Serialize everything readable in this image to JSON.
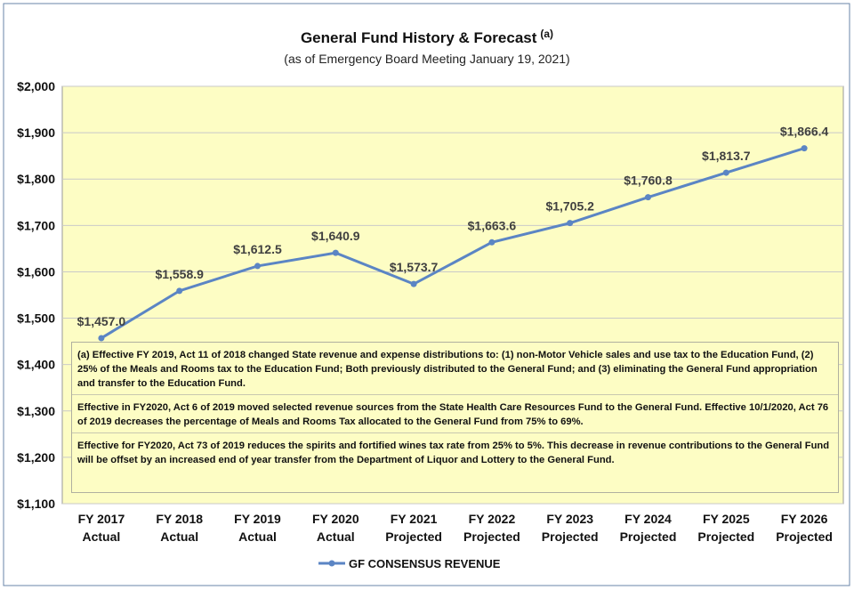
{
  "chart_data": {
    "type": "line",
    "title": "General Fund History & Forecast",
    "title_superscript": "(a)",
    "subtitle": "(as of Emergency Board Meeting January 19, 2021)",
    "categories": [
      "FY 2017\nActual",
      "FY 2018\nActual",
      "FY 2019\nActual",
      "FY 2020\nActual",
      "FY 2021\nProjected",
      "FY 2022\nProjected",
      "FY 2023\nProjected",
      "FY 2024\nProjected",
      "FY 2025\nProjected",
      "FY 2026\nProjected"
    ],
    "series": [
      {
        "name": "GF CONSENSUS REVENUE",
        "color": "#5b85c4",
        "values": [
          1457.0,
          1558.9,
          1612.5,
          1640.9,
          1573.7,
          1663.6,
          1705.2,
          1760.8,
          1813.7,
          1866.4
        ],
        "value_labels": [
          "$1,457.0",
          "$1,558.9",
          "$1,612.5",
          "$1,640.9",
          "$1,573.7",
          "$1,663.6",
          "$1,705.2",
          "$1,760.8",
          "$1,813.7",
          "$1,866.4"
        ]
      }
    ],
    "ylim": [
      1100,
      2000
    ],
    "yticks": [
      {
        "value": 1100,
        "label": "$1,100"
      },
      {
        "value": 1200,
        "label": "$1,200"
      },
      {
        "value": 1300,
        "label": "$1,300"
      },
      {
        "value": 1400,
        "label": "$1,400"
      },
      {
        "value": 1500,
        "label": "$1,500"
      },
      {
        "value": 1600,
        "label": "$1,600"
      },
      {
        "value": 1700,
        "label": "$1,700"
      },
      {
        "value": 1800,
        "label": "$1,800"
      },
      {
        "value": 1900,
        "label": "$1,900"
      },
      {
        "value": 2000,
        "label": "$2,000"
      }
    ],
    "grid": true,
    "legend": "bottom",
    "notes": [
      "(a) Effective FY 2019, Act 11 of 2018 changed State revenue and expense distributions to: (1) non-Motor Vehicle sales and use tax to the Education Fund, (2) 25% of the Meals and Rooms tax to the Education Fund; Both previously distributed to the General Fund; and (3) eliminating the General Fund appropriation and transfer to the Education Fund.",
      "Effective in FY2020, Act 6 of 2019 moved selected revenue sources from the State Health Care Resources Fund to the General Fund. Effective 10/1/2020, Act 76 of 2019 decreases the percentage of Meals and Rooms Tax allocated to the General Fund from 75% to 69%.",
      "Effective for FY2020, Act 73 of 2019 reduces the spirits and fortified wines tax rate from 25% to 5%. This decrease in revenue contributions to the General Fund will be offset by an increased end of year transfer from the Department of Liquor and Lottery to the General Fund."
    ]
  }
}
